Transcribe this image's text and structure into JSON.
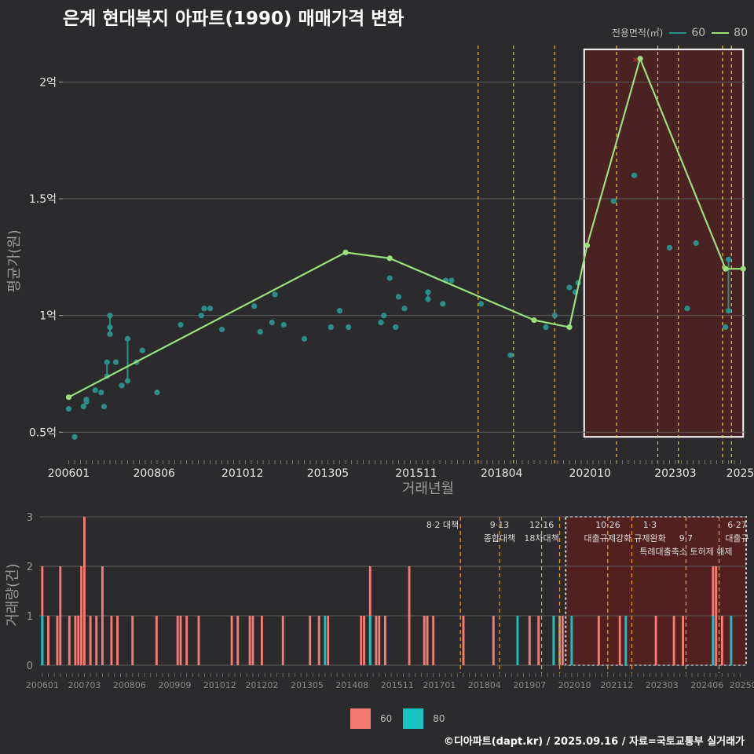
{
  "title": "은계 현대복지 아파트(1990) 매매가격 변화",
  "credit": "©디아파트(dapt.kr) / 2025.09.16 / 자료=국토교통부 실거래가",
  "colors": {
    "bg": "#2b2b2d",
    "line60": "#2a8f8a",
    "line80": "#98e07a",
    "bar60": "#f57a72",
    "bar80": "#18c2c2",
    "policy": "#f0d020",
    "policy_bottom": "#f0a020",
    "highlight": "#5a1f1f",
    "grid": "#5c5c5c"
  },
  "legend_top": {
    "title": "전용면적(㎡)",
    "items": [
      "60",
      "80"
    ]
  },
  "legend_bottom": {
    "items": [
      "60",
      "80"
    ]
  },
  "chart_data": [
    {
      "type": "line",
      "title": "은계 현대복지 아파트(1990) 매매가격 변화",
      "xlabel": "거래년월",
      "ylabel": "평균가(원)",
      "x_tick_labels": [
        "200601",
        "200806",
        "201012",
        "201305",
        "201511",
        "201804",
        "202010",
        "202303",
        "2025"
      ],
      "x_tick_months": [
        0,
        29,
        59,
        88,
        118,
        147,
        177,
        206,
        228
      ],
      "y_ticks": [
        0.5,
        1.0,
        1.5,
        2.0
      ],
      "y_tick_labels": [
        "0.5억",
        "1억",
        "1.5억",
        "2억"
      ],
      "ylim": [
        0.4,
        2.2
      ],
      "xlim_months": [
        -2,
        230
      ],
      "highlight_range_months": [
        175,
        229
      ],
      "policy_lines_months": [
        139,
        151,
        165,
        186,
        200,
        207,
        222,
        225
      ],
      "series": [
        {
          "name": "80",
          "points": [
            [
              0,
              0.65
            ],
            [
              94,
              1.27
            ],
            [
              109,
              1.245
            ],
            [
              158,
              0.98
            ],
            [
              170,
              0.95
            ],
            [
              176,
              1.3
            ],
            [
              194,
              2.1
            ],
            [
              223,
              1.2
            ],
            [
              229,
              1.2
            ]
          ]
        },
        {
          "name": "60",
          "points": [
            [
              0,
              0.6
            ],
            [
              2,
              0.48
            ],
            [
              5,
              0.61
            ],
            [
              6,
              0.63
            ],
            [
              6,
              0.64
            ],
            [
              9,
              0.68
            ],
            [
              11,
              0.67
            ],
            [
              12,
              0.61
            ],
            [
              13,
              0.74
            ],
            [
              13,
              0.8
            ],
            [
              14,
              0.92
            ],
            [
              14,
              0.95
            ],
            [
              14,
              1.0
            ],
            [
              16,
              0.8
            ],
            [
              18,
              0.7
            ],
            [
              20,
              0.72
            ],
            [
              20,
              0.9
            ],
            [
              23,
              0.8
            ],
            [
              25,
              0.85
            ],
            [
              30,
              0.67
            ],
            [
              38,
              0.96
            ],
            [
              45,
              1.0
            ],
            [
              46,
              1.03
            ],
            [
              48,
              1.03
            ],
            [
              52,
              0.94
            ],
            [
              63,
              1.04
            ],
            [
              65,
              0.93
            ],
            [
              69,
              0.97
            ],
            [
              70,
              1.09
            ],
            [
              73,
              0.96
            ],
            [
              80,
              0.9
            ],
            [
              89,
              0.95
            ],
            [
              92,
              1.02
            ],
            [
              95,
              0.95
            ],
            [
              106,
              0.97
            ],
            [
              107,
              1.0
            ],
            [
              109,
              1.16
            ],
            [
              111,
              0.95
            ],
            [
              112,
              1.08
            ],
            [
              114,
              1.03
            ],
            [
              122,
              1.07
            ],
            [
              122,
              1.1
            ],
            [
              127,
              1.05
            ],
            [
              128,
              1.15
            ],
            [
              130,
              1.15
            ],
            [
              140,
              1.05
            ],
            [
              150,
              0.83
            ],
            [
              162,
              0.95
            ],
            [
              165,
              1.0
            ],
            [
              170,
              1.12
            ],
            [
              172,
              1.1
            ],
            [
              173,
              1.14
            ],
            [
              185,
              1.49
            ],
            [
              192,
              1.6
            ],
            [
              204,
              1.29
            ],
            [
              210,
              1.03
            ],
            [
              213,
              1.31
            ],
            [
              223,
              0.95
            ],
            [
              224,
              1.02
            ],
            [
              224,
              1.24
            ]
          ]
        }
      ]
    },
    {
      "type": "bar",
      "ylabel": "거래량(건)",
      "x_tick_labels": [
        "200601",
        "200703",
        "200806",
        "200909",
        "201012",
        "201202",
        "201305",
        "201408",
        "201511",
        "201701",
        "201804",
        "201907",
        "202010",
        "202112",
        "202303",
        "202406",
        "20250"
      ],
      "x_tick_months": [
        0,
        14,
        29,
        44,
        59,
        73,
        88,
        103,
        118,
        132,
        147,
        162,
        177,
        191,
        206,
        221,
        233
      ],
      "y_ticks": [
        0,
        1,
        2,
        3
      ],
      "ylim": [
        0,
        3
      ],
      "xlim_months": [
        -1,
        234
      ],
      "highlight_range_months": [
        174,
        234
      ],
      "policy_lines_months": [
        139,
        152,
        166,
        172,
        188,
        196,
        214,
        225
      ],
      "policy_labels": [
        {
          "month": 139,
          "lines": [
            "8·2 대책"
          ],
          "align": "end"
        },
        {
          "month": 152,
          "lines": [
            "9·13",
            "종합대책"
          ],
          "align": "middle"
        },
        {
          "month": 166,
          "lines": [
            "12·16",
            "18차대책"
          ],
          "align": "middle"
        },
        {
          "month": 188,
          "lines": [
            "10·26",
            "대출규제강화"
          ],
          "align": "middle"
        },
        {
          "month": 202,
          "lines": [
            "1·3",
            "규제완화"
          ],
          "align": "middle"
        },
        {
          "month": 214,
          "lines": [
            "",
            "9·7",
            "특례대출축소 토허제 해제"
          ],
          "align": "middle"
        },
        {
          "month": 231,
          "lines": [
            "6·27",
            "대출규"
          ],
          "align": "middle"
        }
      ],
      "series": [
        {
          "name": "60",
          "bars": [
            [
              0,
              2
            ],
            [
              2,
              1
            ],
            [
              5,
              1
            ],
            [
              6,
              2
            ],
            [
              9,
              1
            ],
            [
              11,
              1
            ],
            [
              12,
              1
            ],
            [
              13,
              2
            ],
            [
              14,
              3
            ],
            [
              16,
              1
            ],
            [
              18,
              1
            ],
            [
              20,
              2
            ],
            [
              23,
              1
            ],
            [
              25,
              1
            ],
            [
              30,
              1
            ],
            [
              38,
              1
            ],
            [
              45,
              1
            ],
            [
              46,
              1
            ],
            [
              48,
              1
            ],
            [
              52,
              1
            ],
            [
              63,
              1
            ],
            [
              65,
              1
            ],
            [
              69,
              1
            ],
            [
              70,
              1
            ],
            [
              73,
              1
            ],
            [
              80,
              1
            ],
            [
              89,
              1
            ],
            [
              92,
              1
            ],
            [
              95,
              1
            ],
            [
              106,
              1
            ],
            [
              107,
              1
            ],
            [
              109,
              2
            ],
            [
              111,
              1
            ],
            [
              112,
              1
            ],
            [
              114,
              1
            ],
            [
              122,
              2
            ],
            [
              127,
              1
            ],
            [
              128,
              1
            ],
            [
              130,
              1
            ],
            [
              140,
              1
            ],
            [
              150,
              1
            ],
            [
              162,
              1
            ],
            [
              165,
              1
            ],
            [
              170,
              1
            ],
            [
              172,
              1
            ],
            [
              173,
              1
            ],
            [
              185,
              1
            ],
            [
              192,
              1
            ],
            [
              204,
              1
            ],
            [
              210,
              1
            ],
            [
              213,
              1
            ],
            [
              223,
              2
            ],
            [
              224,
              2
            ],
            [
              226,
              1
            ]
          ]
        },
        {
          "name": "80",
          "bars": [
            [
              0,
              1
            ],
            [
              94,
              1
            ],
            [
              109,
              1
            ],
            [
              158,
              1
            ],
            [
              170,
              1
            ],
            [
              176,
              1
            ],
            [
              194,
              1
            ],
            [
              223,
              1
            ],
            [
              229,
              1
            ]
          ]
        }
      ]
    }
  ]
}
